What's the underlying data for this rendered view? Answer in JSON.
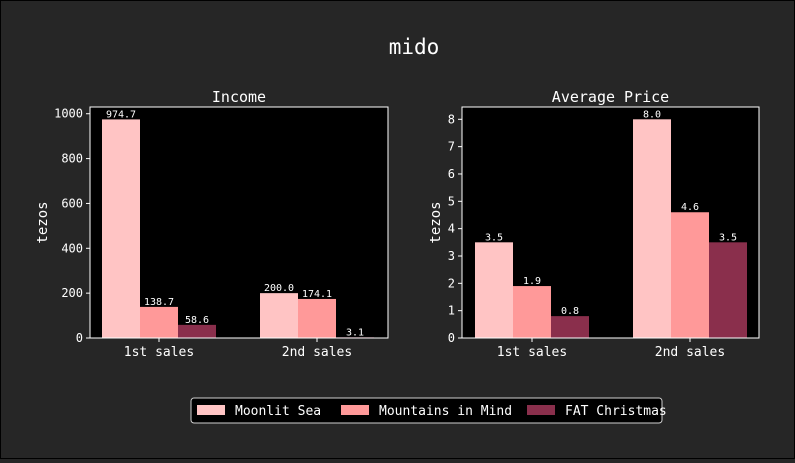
{
  "figure": {
    "title": "mido"
  },
  "colors": {
    "background": "#262626",
    "plot_background": "#000000",
    "text": "#ffffff",
    "series": [
      "#ffc4c4",
      "#ff9999",
      "#8a2f4c"
    ]
  },
  "legend": {
    "placement": "bottom-center",
    "entries": [
      "Moonlit Sea",
      "Mountains in Mind",
      "FAT Christmas"
    ]
  },
  "chart_data": [
    {
      "type": "bar",
      "title": "Income",
      "xlabel": "",
      "ylabel": "tezos",
      "categories": [
        "1st sales",
        "2nd sales"
      ],
      "ylim": [
        0,
        1030
      ],
      "yticks": [
        0,
        200,
        400,
        600,
        800,
        1000
      ],
      "grid": false,
      "series": [
        {
          "name": "Moonlit Sea",
          "values": [
            974.7,
            200.0
          ]
        },
        {
          "name": "Mountains in Mind",
          "values": [
            138.7,
            174.1
          ]
        },
        {
          "name": "FAT Christmas",
          "values": [
            58.6,
            3.1
          ]
        }
      ]
    },
    {
      "type": "bar",
      "title": "Average Price",
      "xlabel": "",
      "ylabel": "tezos",
      "categories": [
        "1st sales",
        "2nd sales"
      ],
      "ylim": [
        0,
        8.45
      ],
      "yticks": [
        0,
        1,
        2,
        3,
        4,
        5,
        6,
        7,
        8
      ],
      "grid": false,
      "series": [
        {
          "name": "Moonlit Sea",
          "values": [
            3.5,
            8.0
          ]
        },
        {
          "name": "Mountains in Mind",
          "values": [
            1.9,
            4.6
          ]
        },
        {
          "name": "FAT Christmas",
          "values": [
            0.8,
            3.5
          ]
        }
      ]
    }
  ]
}
